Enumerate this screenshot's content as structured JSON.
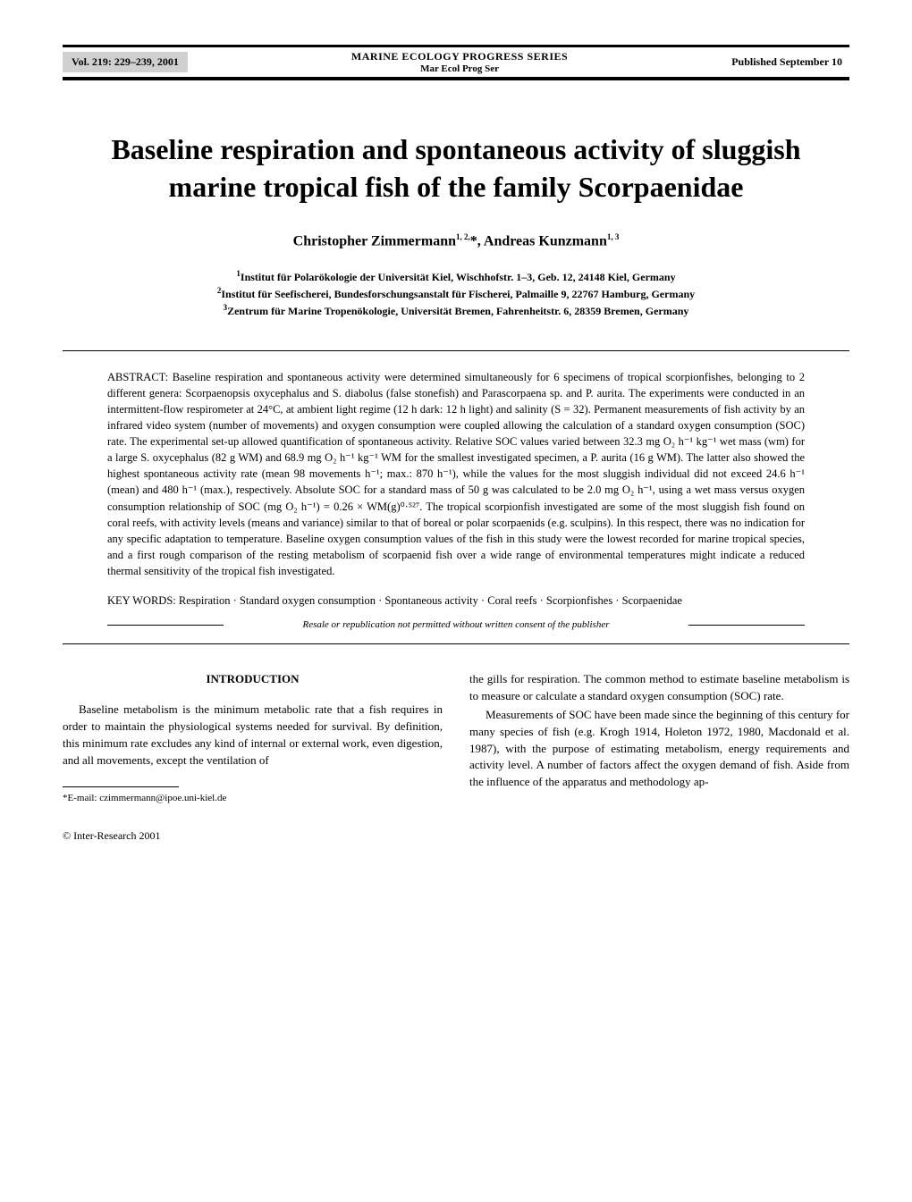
{
  "header": {
    "volume": "Vol. 219: 229–239, 2001",
    "journal_name": "MARINE ECOLOGY PROGRESS SERIES",
    "journal_abbr": "Mar Ecol Prog Ser",
    "pub_date": "Published September 10"
  },
  "title": "Baseline respiration and spontaneous activity of sluggish marine tropical fish of the family Scorpaenidae",
  "authors": "Christopher Zimmermann",
  "authors_sup1": "1, 2,",
  "authors_sep": "*, Andreas Kunzmann",
  "authors_sup2": "1, 3",
  "affiliations": {
    "a1": "Institut für Polarökologie der Universität Kiel, Wischhofstr. 1–3, Geb. 12, 24148 Kiel, Germany",
    "a2": "Institut für Seefischerei, Bundesforschungsanstalt für Fischerei, Palmaille 9, 22767 Hamburg, Germany",
    "a3": "Zentrum für Marine Tropenökologie, Universität Bremen, Fahrenheitstr. 6, 28359 Bremen, Germany"
  },
  "abstract": {
    "label": "ABSTRACT:",
    "text": " Baseline respiration and spontaneous activity were determined simultaneously for 6 specimens of tropical scorpionfishes, belonging to 2 different genera: Scorpaenopsis oxycephalus and S. diabolus (false stonefish) and Parascorpaena sp. and P. aurita. The experiments were conducted in an intermittent-flow respirometer at 24°C, at ambient light regime (12 h dark: 12 h light) and salinity (S = 32). Permanent measurements of fish activity by an infrared video system (number of movements) and oxygen consumption were coupled allowing the calculation of a standard oxygen consumption (SOC) rate. The experimental set-up allowed quantification of spontaneous activity. Relative SOC values varied between 32.3 mg O₂ h⁻¹ kg⁻¹ wet mass (wm) for a large S. oxycephalus (82 g WM) and 68.9 mg O₂ h⁻¹ kg⁻¹ WM for the smallest investigated specimen, a P. aurita (16 g WM). The latter also showed the highest spontaneous activity rate (mean 98 movements h⁻¹; max.: 870 h⁻¹), while the values for the most sluggish individual did not exceed 24.6 h⁻¹ (mean) and 480 h⁻¹ (max.), respectively. Absolute SOC for a standard mass of 50 g was calculated to be 2.0 mg O₂ h⁻¹, using a wet mass versus oxygen consumption relationship of SOC (mg O₂ h⁻¹) = 0.26 × WM(g)⁰·⁵²⁷. The tropical scorpionfish investigated are some of the most sluggish fish found on coral reefs, with activity levels (means and variance) similar to that of boreal or polar scorpaenids (e.g. sculpins). In this respect, there was no indication for any specific adaptation to temperature. Baseline oxygen consumption values of the fish in this study were the lowest recorded for marine tropical species, and a first rough comparison of the resting metabolism of scorpaenid fish over a wide range of environmental temperatures might indicate a reduced thermal sensitivity of the tropical fish investigated."
  },
  "keywords": {
    "label": "KEY WORDS:",
    "text": "  Respiration · Standard oxygen consumption · Spontaneous activity · Coral reefs · Scorpionfishes · Scorpaenidae"
  },
  "resale": "Resale or republication not permitted without written consent of the publisher",
  "intro_heading": "INTRODUCTION",
  "body": {
    "p1": "Baseline metabolism is the minimum metabolic rate that a fish requires in order to maintain the physiological systems needed for survival. By definition, this minimum rate excludes any kind of internal or external work, even digestion, and all movements, except the ventilation of",
    "p2": "the gills for respiration. The common method to estimate baseline metabolism is to measure or calculate a standard oxygen consumption (SOC) rate.",
    "p3": "Measurements of SOC have been made since the beginning of this century for many species of fish (e.g. Krogh 1914, Holeton 1972, 1980, Macdonald et al. 1987), with the purpose of estimating metabolism, energy requirements and activity level. A number of factors affect the oxygen demand of fish. Aside from the influence of the apparatus and methodology ap-"
  },
  "footnote": "*E-mail: czimmermann@ipoe.uni-kiel.de",
  "copyright": "© Inter-Research 2001"
}
